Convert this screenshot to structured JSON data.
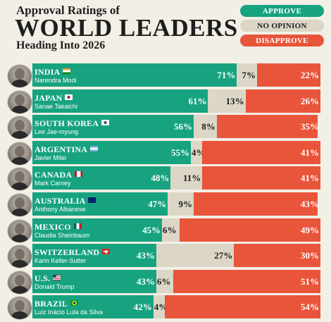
{
  "header": {
    "supertitle": "Approval Ratings of",
    "title": "WORLD LEADERS",
    "subtitle": "Heading Into 2026"
  },
  "legend": [
    {
      "label": "APPROVE",
      "color": "#17a37f",
      "text_color": "#ffffff"
    },
    {
      "label": "NO OPINION",
      "color": "#dcd6c6",
      "text_color": "#1e1e1e"
    },
    {
      "label": "DISAPPROVE",
      "color": "#e8553a",
      "text_color": "#ffffff"
    }
  ],
  "chart_data": {
    "type": "bar",
    "stacked": true,
    "orientation": "horizontal",
    "categories": [
      "INDIA",
      "JAPAN",
      "SOUTH KOREA",
      "ARGENTINA",
      "CANADA",
      "AUSTRALIA",
      "MEXICO",
      "SWITZERLAND",
      "U.S.",
      "BRAZIL"
    ],
    "leaders": [
      "Narendra Modi",
      "Sanae Takaichi",
      "Lee Jae-myung",
      "Javier Milei",
      "Mark Carney",
      "Anthony Albanese",
      "Claudia Sheinbaum",
      "Karin Keller-Sutter",
      "Donald Trump",
      "Luiz Inácio Lula da Silva"
    ],
    "flags": [
      "flag-india-icon",
      "flag-japan-icon",
      "flag-south-korea-icon",
      "flag-argentina-icon",
      "flag-canada-icon",
      "flag-australia-icon",
      "flag-mexico-icon",
      "flag-switzerland-icon",
      "flag-us-icon",
      "flag-brazil-icon"
    ],
    "series": [
      {
        "name": "APPROVE",
        "color": "#17a37f",
        "values": [
          71,
          61,
          56,
          55,
          48,
          47,
          45,
          43,
          43,
          42
        ]
      },
      {
        "name": "NO OPINION",
        "color": "#dcd6c6",
        "values": [
          7,
          13,
          8,
          4,
          11,
          9,
          6,
          27,
          6,
          4
        ]
      },
      {
        "name": "DISAPPROVE",
        "color": "#e8553a",
        "values": [
          22,
          26,
          35,
          41,
          41,
          43,
          49,
          30,
          51,
          54
        ]
      }
    ],
    "value_suffix": "%",
    "xlim": [
      0,
      100
    ],
    "grid": false,
    "legend_position": "top-right"
  },
  "colors": {
    "background": "#f2efe6",
    "approve": "#17a37f",
    "no_opinion": "#dcd6c6",
    "disapprove": "#e8553a",
    "title": "#1e1e1e"
  }
}
